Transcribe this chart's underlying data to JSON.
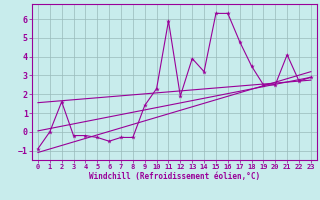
{
  "background_color": "#c8ecec",
  "grid_color": "#aaccaa",
  "line_color": "#990099",
  "xlim": [
    -0.5,
    23.5
  ],
  "ylim": [
    -1.5,
    6.8
  ],
  "yticks": [
    -1,
    0,
    1,
    2,
    3,
    4,
    5,
    6
  ],
  "xticks": [
    0,
    1,
    2,
    3,
    4,
    5,
    6,
    7,
    8,
    9,
    10,
    11,
    12,
    13,
    14,
    15,
    16,
    17,
    18,
    19,
    20,
    21,
    22,
    23
  ],
  "xlabel": "Windchill (Refroidissement éolien,°C)",
  "data_x": [
    0,
    1,
    2,
    3,
    4,
    5,
    6,
    7,
    8,
    9,
    10,
    11,
    12,
    13,
    14,
    15,
    16,
    17,
    18,
    19,
    20,
    21,
    22,
    23
  ],
  "data_y": [
    -0.9,
    0.0,
    1.6,
    -0.2,
    -0.2,
    -0.3,
    -0.5,
    -0.3,
    -0.3,
    1.4,
    2.3,
    5.9,
    1.9,
    3.9,
    3.2,
    6.3,
    6.3,
    4.8,
    3.5,
    2.5,
    2.5,
    4.1,
    2.7,
    2.9
  ],
  "trend1_x": [
    0,
    23
  ],
  "trend1_y": [
    -1.1,
    3.2
  ],
  "trend2_x": [
    0,
    23
  ],
  "trend2_y": [
    1.55,
    2.75
  ],
  "trend3_x": [
    0,
    23
  ],
  "trend3_y": [
    0.05,
    2.9
  ]
}
